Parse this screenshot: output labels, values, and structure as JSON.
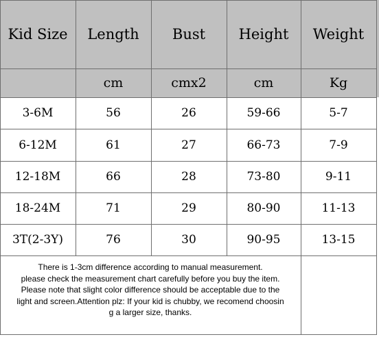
{
  "table": {
    "headers": [
      "Kid Size",
      "Length",
      "Bust",
      "Height",
      "Weight"
    ],
    "units": [
      "",
      "cm",
      "cmx2",
      "cm",
      "Kg"
    ],
    "rows": [
      [
        "3-6M",
        "56",
        "26",
        "59-66",
        "5-7"
      ],
      [
        "6-12M",
        "61",
        "27",
        "66-73",
        "7-9"
      ],
      [
        "12-18M",
        "66",
        "28",
        "73-80",
        "9-11"
      ],
      [
        "18-24M",
        "71",
        "29",
        "80-90",
        "11-13"
      ],
      [
        "3T(2-3Y)",
        "76",
        "30",
        "90-95",
        "13-15"
      ]
    ]
  },
  "note": {
    "lines": [
      "There is 1-3cm difference according to manual measurement.",
      "please check the measurement chart carefully before you buy the item.",
      "Please note that slight color difference should be acceptable due to the",
      "light and screen.Attention plz: If your kid is chubby, we recomend choosin",
      "g a larger size, thanks."
    ]
  },
  "colors": {
    "header_bg": "#c0c0c0",
    "grid_line": "#6e6e6e",
    "background": "#ffffff"
  }
}
